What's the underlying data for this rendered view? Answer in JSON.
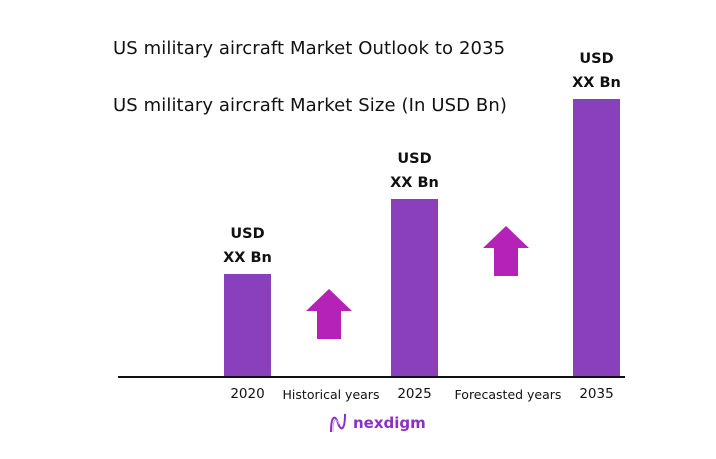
{
  "chart_data": {
    "type": "bar",
    "title": "US military aircraft Market Outlook to 2035",
    "subtitle": "US military aircraft Market Size (In USD Bn)",
    "categories": [
      "2020",
      "2025",
      "2035"
    ],
    "values_relative_percent_of_max": [
      37,
      64,
      100
    ],
    "data_labels": [
      {
        "line1": "USD",
        "line2": "XX Bn"
      },
      {
        "line1": "USD",
        "line2": "XX Bn"
      },
      {
        "line1": "USD",
        "line2": "XX Bn"
      }
    ],
    "period_labels": [
      "Historical years",
      "Forecasted years"
    ],
    "grid": false,
    "legend": "none",
    "colors": {
      "bar": "#8a3fbd",
      "arrow": "#b522b8",
      "axis": "#111111"
    }
  },
  "brand": {
    "name": "nexdigm",
    "color": "#8b2fc9"
  }
}
